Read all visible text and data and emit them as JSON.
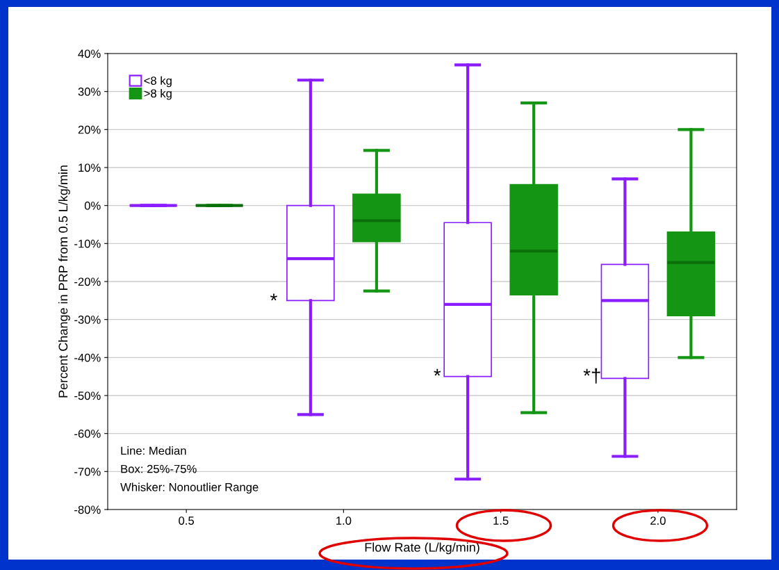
{
  "chart_data": {
    "type": "box",
    "xlabel": "Flow Rate (L/kg/min)",
    "ylabel": "Percent Change in PRP from 0.5 L/kg/min",
    "categories": [
      "0.5",
      "1.0",
      "1.5",
      "2.0"
    ],
    "series": [
      {
        "name": "<8 kg",
        "color": "#8a1cff",
        "boxes": [
          {
            "low": 0,
            "q1": 0,
            "median": 0,
            "q3": 0,
            "high": 0
          },
          {
            "low": -55,
            "q1": -25,
            "median": -14,
            "q3": 0,
            "high": 33
          },
          {
            "low": -72,
            "q1": -45,
            "median": -26,
            "q3": -4.5,
            "high": 37
          },
          {
            "low": -66,
            "q1": -45.5,
            "median": -25,
            "q3": -15.5,
            "high": 7
          }
        ]
      },
      {
        "name": ">8 kg",
        "color": "#149614",
        "boxes": [
          {
            "low": 0,
            "q1": 0,
            "median": 0,
            "q3": 0,
            "high": 0
          },
          {
            "low": -22.5,
            "q1": -9.5,
            "median": -4,
            "q3": 3,
            "high": 14.5
          },
          {
            "low": -54.5,
            "q1": -23.5,
            "median": -12,
            "q3": 5.5,
            "high": 27
          },
          {
            "low": -40,
            "q1": -29,
            "median": -15,
            "q3": -7,
            "high": 20
          }
        ]
      }
    ],
    "ylim": [
      -80,
      40
    ],
    "yticks": [
      {
        "value": -80,
        "label": "-80%"
      },
      {
        "value": -70,
        "label": "-70%"
      },
      {
        "value": -60,
        "label": "-60%"
      },
      {
        "value": -50,
        "label": "-50%"
      },
      {
        "value": -40,
        "label": "-40%"
      },
      {
        "value": -30,
        "label": "-30%"
      },
      {
        "value": -20,
        "label": "-20%"
      },
      {
        "value": -10,
        "label": "-10%"
      },
      {
        "value": 0,
        "label": "0%"
      },
      {
        "value": 10,
        "label": "10%"
      },
      {
        "value": 20,
        "label": "20%"
      },
      {
        "value": 30,
        "label": "30%"
      },
      {
        "value": 40,
        "label": "40%"
      }
    ],
    "grid": "y",
    "legend": "top left",
    "annotations": [
      "*",
      "*",
      "*†",
      "Line: Median",
      "Box: 25%-75%",
      "Whisker: Nonoutlier Range"
    ]
  }
}
